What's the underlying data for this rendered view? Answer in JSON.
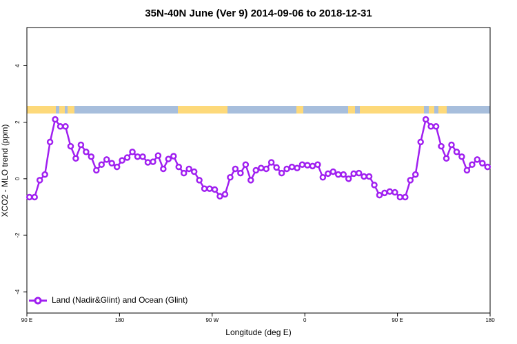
{
  "chart_data": {
    "type": "line",
    "title": "35N-40N June (Ver 9)   2014-09-06 to 2018-12-31",
    "xlabel": "Longitude (deg E)",
    "ylabel": "XCO2 - MLO trend (ppm)",
    "xlim": [
      90,
      540
    ],
    "xticks": [
      {
        "value": 90,
        "label": "90 E"
      },
      180,
      {
        "value": 270,
        "label": "90 W"
      },
      {
        "value": 360,
        "label": "0"
      },
      {
        "value": 450,
        "label": "90 E"
      },
      {
        "value": 540,
        "label": "180"
      }
    ],
    "ylim": [
      -4.75,
      5.35
    ],
    "yticks": [
      -4,
      -2,
      0,
      2,
      4
    ],
    "legend": "bottom-left",
    "x": [
      92.5,
      97.5,
      102.5,
      107.5,
      112.5,
      117.5,
      122.5,
      127.5,
      132.5,
      137.5,
      142.5,
      147.5,
      152.5,
      157.5,
      162.5,
      167.5,
      172.5,
      177.5,
      182.5,
      187.5,
      192.5,
      197.5,
      202.5,
      207.5,
      212.5,
      217.5,
      222.5,
      227.5,
      232.5,
      237.5,
      242.5,
      247.5,
      252.5,
      257.5,
      262.5,
      267.5,
      272.5,
      277.5,
      282.5,
      287.5,
      292.5,
      297.5,
      302.5,
      307.5,
      312.5,
      317.5,
      322.5,
      327.5,
      332.5,
      337.5,
      342.5,
      347.5,
      352.5,
      357.5,
      362.5,
      367.5,
      372.5,
      377.5,
      382.5,
      387.5,
      392.5,
      397.5,
      402.5,
      407.5,
      412.5,
      417.5,
      422.5,
      427.5,
      432.5,
      437.5,
      442.5,
      447.5,
      452.5,
      457.5,
      462.5,
      467.5,
      472.5,
      477.5,
      482.5,
      487.5,
      492.5,
      497.5,
      502.5,
      507.5,
      512.5,
      517.5,
      522.5,
      527.5,
      532.5,
      537.5
    ],
    "series": [
      {
        "name": "Land (Nadir&Glint) and Ocean (Glint)",
        "color": "#a020f0",
        "values": [
          -0.65,
          -0.65,
          -0.05,
          0.15,
          1.3,
          2.1,
          1.85,
          1.85,
          1.15,
          0.72,
          1.2,
          0.95,
          0.78,
          0.3,
          0.5,
          0.68,
          0.55,
          0.42,
          0.65,
          0.75,
          0.95,
          0.78,
          0.78,
          0.58,
          0.6,
          0.82,
          0.35,
          0.7,
          0.8,
          0.42,
          0.2,
          0.35,
          0.25,
          -0.05,
          -0.35,
          -0.35,
          -0.38,
          -0.62,
          -0.55,
          0.05,
          0.35,
          0.2,
          0.5,
          -0.05,
          0.3,
          0.38,
          0.35,
          0.58,
          0.4,
          0.2,
          0.35,
          0.42,
          0.38,
          0.5,
          0.48,
          0.45,
          0.5,
          0.05,
          0.18,
          0.25,
          0.15,
          0.15,
          0.0,
          0.18,
          0.2,
          0.08,
          0.08,
          -0.22,
          -0.58,
          -0.5,
          -0.45,
          -0.48,
          -0.65,
          -0.65,
          -0.05,
          0.15,
          1.3,
          2.1,
          1.85,
          1.85,
          1.15,
          0.72,
          1.2,
          0.95,
          0.78,
          0.3,
          0.5,
          0.68,
          0.55,
          0.42
        ]
      }
    ]
  }
}
